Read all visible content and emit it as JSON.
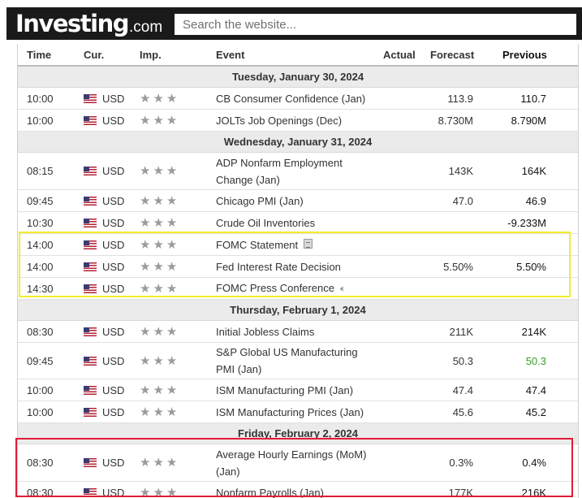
{
  "header": {
    "logo_brand": "Investing",
    "logo_tld": ".com",
    "search_placeholder": "Search the website..."
  },
  "columns": {
    "time": "Time",
    "currency": "Cur.",
    "importance": "Imp.",
    "event": "Event",
    "actual": "Actual",
    "forecast": "Forecast",
    "previous": "Previous"
  },
  "days": [
    {
      "date": "Tuesday, January 30, 2024",
      "events": [
        {
          "time": "10:00",
          "cur": "USD",
          "event": "CB Consumer Confidence (Jan)",
          "actual": "",
          "forecast": "113.9",
          "previous": "110.7"
        },
        {
          "time": "10:00",
          "cur": "USD",
          "event": "JOLTs Job Openings (Dec)",
          "actual": "",
          "forecast": "8.730M",
          "previous": "8.790M"
        }
      ]
    },
    {
      "date": "Wednesday, January 31, 2024",
      "events": [
        {
          "time": "08:15",
          "cur": "USD",
          "event": "ADP Nonfarm Employment Change (Jan)",
          "actual": "",
          "forecast": "143K",
          "previous": "164K"
        },
        {
          "time": "09:45",
          "cur": "USD",
          "event": "Chicago PMI (Jan)",
          "actual": "",
          "forecast": "47.0",
          "previous": "46.9"
        },
        {
          "time": "10:30",
          "cur": "USD",
          "event": "Crude Oil Inventories",
          "actual": "",
          "forecast": "",
          "previous": "-9.233M"
        },
        {
          "time": "14:00",
          "cur": "USD",
          "event": "FOMC Statement",
          "actual": "",
          "forecast": "",
          "previous": "",
          "icon": "document-icon"
        },
        {
          "time": "14:00",
          "cur": "USD",
          "event": "Fed Interest Rate Decision",
          "actual": "",
          "forecast": "5.50%",
          "previous": "5.50%"
        },
        {
          "time": "14:30",
          "cur": "USD",
          "event": "FOMC Press Conference",
          "actual": "",
          "forecast": "",
          "previous": "",
          "icon": "speaker-icon"
        }
      ]
    },
    {
      "date": "Thursday, February 1, 2024",
      "events": [
        {
          "time": "08:30",
          "cur": "USD",
          "event": "Initial Jobless Claims",
          "actual": "",
          "forecast": "211K",
          "previous": "214K"
        },
        {
          "time": "09:45",
          "cur": "USD",
          "event": "S&P Global US Manufacturing PMI (Jan)",
          "actual": "",
          "forecast": "50.3",
          "previous": "50.3",
          "previous_color": "#3a9a2a"
        },
        {
          "time": "10:00",
          "cur": "USD",
          "event": "ISM Manufacturing PMI (Jan)",
          "actual": "",
          "forecast": "47.4",
          "previous": "47.4"
        },
        {
          "time": "10:00",
          "cur": "USD",
          "event": "ISM Manufacturing Prices (Jan)",
          "actual": "",
          "forecast": "45.6",
          "previous": "45.2"
        }
      ]
    },
    {
      "date": "Friday, February 2, 2024",
      "events": [
        {
          "time": "08:30",
          "cur": "USD",
          "event": "Average Hourly Earnings (MoM) (Jan)",
          "actual": "",
          "forecast": "0.3%",
          "previous": "0.4%"
        },
        {
          "time": "08:30",
          "cur": "USD",
          "event": "Nonfarm Payrolls (Jan)",
          "actual": "",
          "forecast": "177K",
          "previous": "216K"
        }
      ]
    }
  ],
  "importance_stars": 3,
  "highlight_colors": {
    "yellow": "#f2ee2a",
    "red": "#e21b37"
  }
}
